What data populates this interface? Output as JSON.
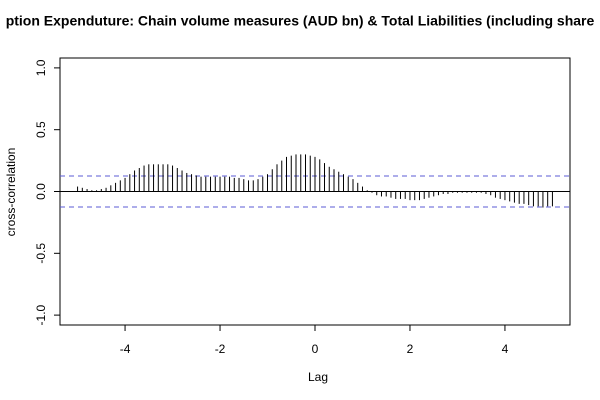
{
  "chart_data": {
    "type": "ccf",
    "title": "ption Expenduture: Chain volume measures (AUD bn) & Total Liabilities (including share",
    "x_label": "Lag",
    "y_label": "cross-correlation",
    "x": [
      -5.0,
      -4.9,
      -4.8,
      -4.7,
      -4.6,
      -4.5,
      -4.4,
      -4.3,
      -4.2,
      -4.1,
      -4.0,
      -3.9,
      -3.8,
      -3.7,
      -3.6,
      -3.5,
      -3.4,
      -3.3,
      -3.2,
      -3.1,
      -3.0,
      -2.9,
      -2.8,
      -2.7,
      -2.6,
      -2.5,
      -2.4,
      -2.3,
      -2.2,
      -2.1,
      -2.0,
      -1.9,
      -1.8,
      -1.7,
      -1.6,
      -1.5,
      -1.4,
      -1.3,
      -1.2,
      -1.1,
      -1.0,
      -0.9,
      -0.8,
      -0.7,
      -0.6,
      -0.5,
      -0.4,
      -0.3,
      -0.2,
      -0.1,
      0.0,
      0.1,
      0.2,
      0.3,
      0.4,
      0.5,
      0.6,
      0.7,
      0.8,
      0.9,
      1.0,
      1.1,
      1.2,
      1.3,
      1.4,
      1.5,
      1.6,
      1.7,
      1.8,
      1.9,
      2.0,
      2.1,
      2.2,
      2.3,
      2.4,
      2.5,
      2.6,
      2.7,
      2.8,
      2.9,
      3.0,
      3.1,
      3.2,
      3.3,
      3.4,
      3.5,
      3.6,
      3.7,
      3.8,
      3.9,
      4.0,
      4.1,
      4.2,
      4.3,
      4.4,
      4.5,
      4.6,
      4.7,
      4.8,
      4.9,
      5.0
    ],
    "values": [
      0.04,
      0.03,
      0.02,
      0.01,
      0.01,
      0.02,
      0.03,
      0.05,
      0.07,
      0.09,
      0.11,
      0.14,
      0.17,
      0.19,
      0.21,
      0.22,
      0.22,
      0.22,
      0.22,
      0.22,
      0.21,
      0.19,
      0.17,
      0.15,
      0.14,
      0.13,
      0.12,
      0.12,
      0.12,
      0.12,
      0.12,
      0.12,
      0.12,
      0.11,
      0.11,
      0.1,
      0.09,
      0.09,
      0.1,
      0.12,
      0.14,
      0.18,
      0.22,
      0.25,
      0.28,
      0.29,
      0.3,
      0.3,
      0.3,
      0.29,
      0.28,
      0.26,
      0.23,
      0.2,
      0.18,
      0.16,
      0.14,
      0.12,
      0.1,
      0.07,
      0.04,
      0.01,
      -0.01,
      -0.03,
      -0.04,
      -0.04,
      -0.05,
      -0.06,
      -0.06,
      -0.06,
      -0.07,
      -0.07,
      -0.07,
      -0.06,
      -0.05,
      -0.04,
      -0.03,
      -0.02,
      -0.02,
      -0.01,
      -0.01,
      -0.01,
      -0.01,
      -0.01,
      -0.01,
      -0.01,
      -0.02,
      -0.03,
      -0.05,
      -0.06,
      -0.07,
      -0.08,
      -0.09,
      -0.1,
      -0.1,
      -0.11,
      -0.12,
      -0.12,
      -0.13,
      -0.12,
      -0.12
    ],
    "color": "#000000",
    "ci": [
      -0.125,
      0.125
    ],
    "ci_color": "#5b5bd6",
    "xlim": [
      -5.37,
      5.37
    ],
    "ylim": [
      -1.08,
      1.08
    ],
    "xticks": [
      -4,
      -2,
      0,
      2,
      4
    ],
    "yticks": [
      -1.0,
      -0.5,
      0.0,
      0.5,
      1.0
    ]
  }
}
